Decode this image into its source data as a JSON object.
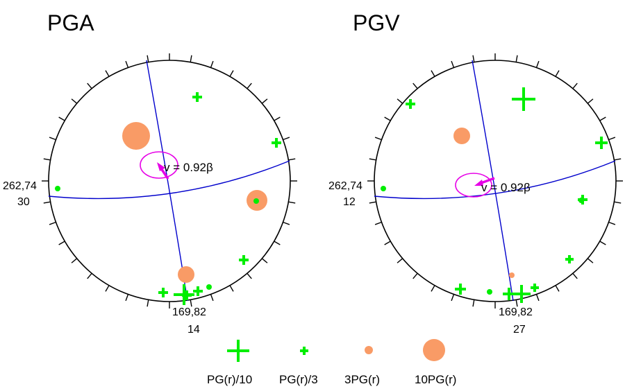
{
  "panels": [
    {
      "title": "PGA",
      "strike_dip_label": "262,74",
      "strike_dip_value": "30",
      "second_plane_label": "169,82",
      "second_plane_value": "14",
      "velocity_label": "v = 0.92β"
    },
    {
      "title": "PGV",
      "strike_dip_label": "262,74",
      "strike_dip_value": "12",
      "second_plane_label": "169,82",
      "second_plane_value": "27",
      "velocity_label": "v = 0.92β"
    }
  ],
  "legend": [
    {
      "label": "PG(r)/10",
      "symbol": "large-cross"
    },
    {
      "label": "PG(r)/3",
      "symbol": "small-cross"
    },
    {
      "label": "3PG(r)",
      "symbol": "small-circle"
    },
    {
      "label": "10PG(r)",
      "symbol": "large-circle"
    }
  ],
  "colors": {
    "cross": "#00ee00",
    "circle": "#f99b66",
    "nodal_plane": "#0000cc",
    "rupture_velocity": "#e600e6",
    "outline": "#000000"
  }
}
